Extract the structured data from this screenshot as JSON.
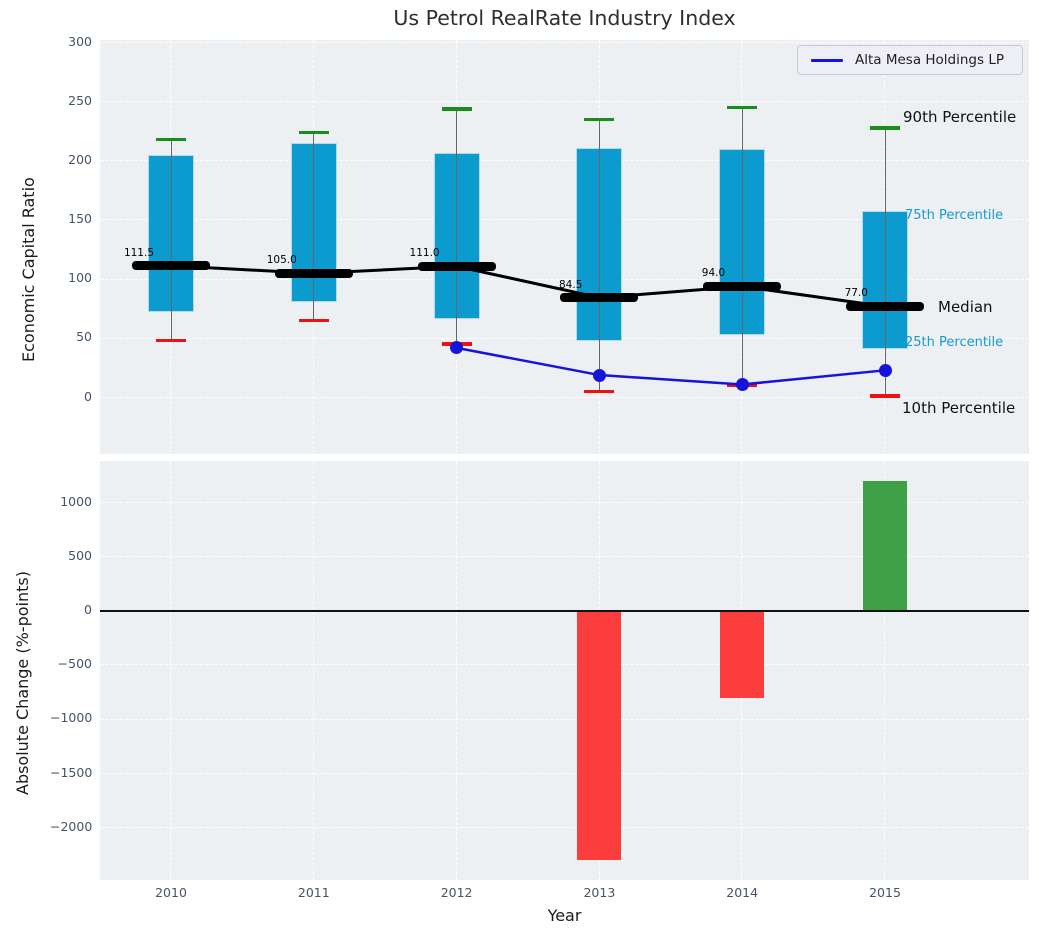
{
  "title": "Us Petrol RealRate Industry Index",
  "legend": {
    "label": "Alta Mesa Holdings LP"
  },
  "annotations": {
    "p90": "90th Percentile",
    "p75": "75th Percentile",
    "median": "Median",
    "p25": "25th Percentile",
    "p10": "10th Percentile"
  },
  "colors": {
    "panel_bg": "#edf0f2",
    "grid": "#ffffff",
    "box_fill": "#0c9bce",
    "box_edge": "#b5d9e9",
    "whisker": "#666666",
    "p90_cap": "#1a8c1a",
    "p10_cap": "#ee1111",
    "median_line": "#000000",
    "company_line": "#1414dd",
    "bar_negative": "#fb3d3d",
    "bar_positive": "#3fa146",
    "tick_label": "#44546a",
    "percentile_label_accent": "#1399d6",
    "text": "#1a1a1a"
  },
  "chart_data": [
    {
      "type": "box-percentile",
      "title": "Us Petrol RealRate Industry Index",
      "ylabel": "Economic Capital Ratio",
      "ylim": [
        -49,
        300
      ],
      "yticks": [
        0,
        50,
        100,
        150,
        200,
        250,
        300
      ],
      "grid": true,
      "legend_position": "upper right",
      "categories": [
        "2010",
        "2011",
        "2012",
        "2013",
        "2014",
        "2015"
      ],
      "series": [
        {
          "name": "90th Percentile",
          "values": [
            218,
            224,
            244,
            235,
            245,
            228
          ]
        },
        {
          "name": "75th Percentile",
          "values": [
            205,
            215,
            207,
            211,
            210,
            158
          ]
        },
        {
          "name": "Median",
          "values": [
            111.5,
            105.0,
            111.0,
            84.5,
            94.0,
            77.0
          ]
        },
        {
          "name": "25th Percentile",
          "values": [
            72,
            81,
            66,
            48,
            53,
            41
          ]
        },
        {
          "name": "10th Percentile",
          "values": [
            48,
            65,
            45,
            5,
            10,
            1
          ]
        },
        {
          "name": "Alta Mesa Holdings LP",
          "type": "line",
          "categories": [
            "2012",
            "2013",
            "2014",
            "2015"
          ],
          "values": [
            42,
            19,
            11,
            23
          ]
        }
      ],
      "median_labels": [
        "111.5",
        "105.0",
        "111.0",
        "84.5",
        "94.0",
        "77.0"
      ]
    },
    {
      "type": "bar",
      "ylabel": "Absolute Change (%-points)",
      "xlabel": "Year",
      "ylim": [
        -2420,
        1390
      ],
      "yticks": [
        1000,
        500,
        0,
        -500,
        -1000,
        -1500,
        -2000
      ],
      "grid": true,
      "zero_line": true,
      "categories": [
        "2010",
        "2011",
        "2012",
        "2013",
        "2014",
        "2015"
      ],
      "values": [
        null,
        null,
        null,
        -2300,
        -800,
        1200
      ]
    }
  ]
}
